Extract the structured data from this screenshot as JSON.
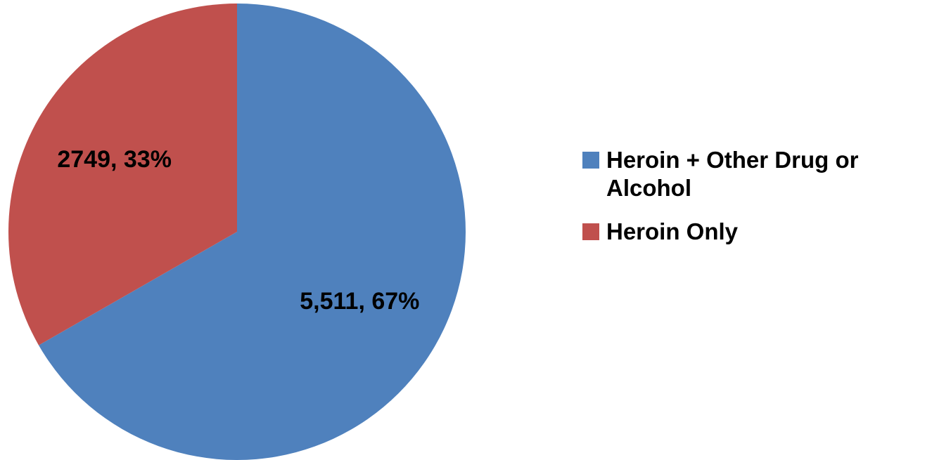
{
  "chart_data": {
    "type": "pie",
    "categories": [
      "Heroin + Other Drug or Alcohol",
      "Heroin Only"
    ],
    "values": [
      5511,
      2749
    ],
    "value_labels": [
      "5,511, 67%",
      "2749, 33%"
    ],
    "colors": [
      "#4f81bd",
      "#c0504d"
    ],
    "legend": "right"
  }
}
